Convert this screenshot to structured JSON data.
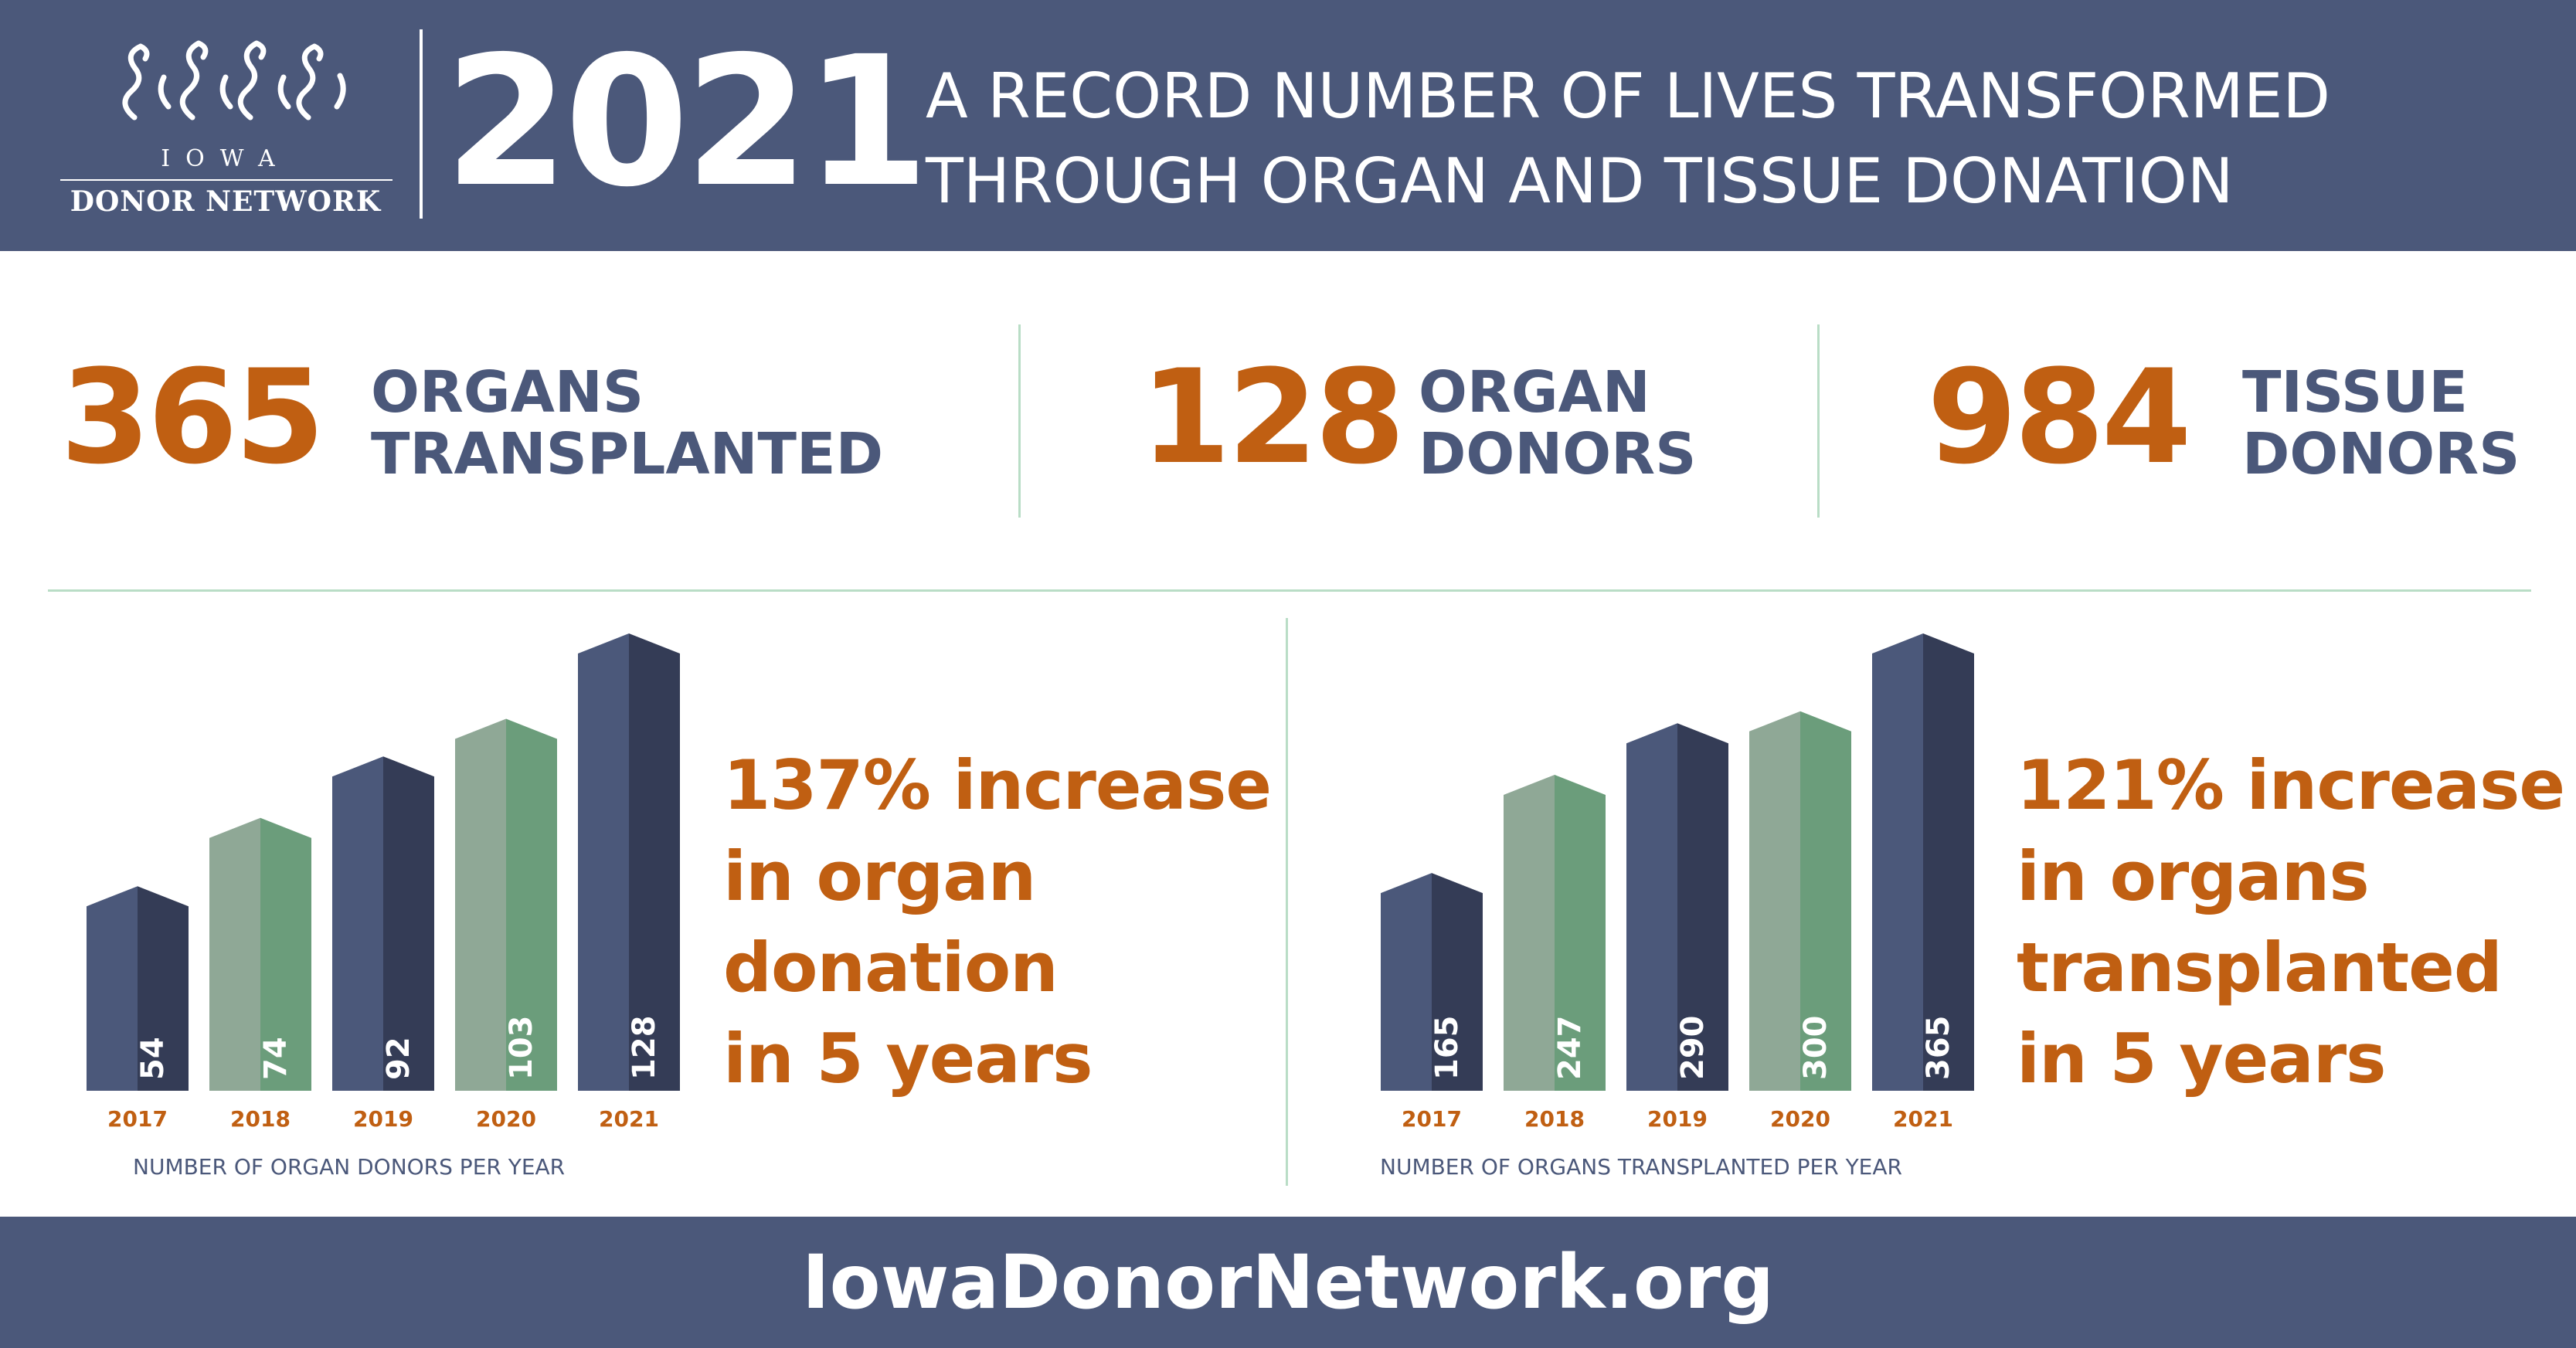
{
  "header": {
    "logo": {
      "mark": "iowa-donor-network-logo",
      "iowa": "IOWA",
      "name": "DONOR NETWORK"
    },
    "year": "2021",
    "headline_line1": "A RECORD NUMBER OF LIVES TRANSFORMED",
    "headline_line2": "THROUGH ORGAN AND TISSUE DONATION"
  },
  "stats": [
    {
      "value": "365",
      "label_line1": "ORGANS",
      "label_line2": "TRANSPLANTED"
    },
    {
      "value": "128",
      "label_line1": "ORGAN",
      "label_line2": "DONORS"
    },
    {
      "value": "984",
      "label_line1": "TISSUE",
      "label_line2": "DONORS"
    }
  ],
  "panels": [
    {
      "increase_lines": [
        "137% increase",
        "in organ",
        "donation",
        "in 5 years"
      ],
      "caption": "NUMBER OF ORGAN DONORS PER YEAR"
    },
    {
      "increase_lines": [
        "121% increase",
        "in organs",
        "transplanted",
        "in 5 years"
      ],
      "caption": "NUMBER OF ORGANS TRANSPLANTED PER YEAR"
    }
  ],
  "colors": {
    "navy": "#4b587a",
    "navy_dark": "#343c56",
    "green": "#8fa896",
    "green_dark": "#6b9d7b",
    "orange": "#c05f12",
    "divider": "#b9ddc6"
  },
  "chart_data": [
    {
      "type": "bar",
      "title": "",
      "xlabel": "NUMBER OF ORGAN DONORS PER YEAR",
      "ylabel": "",
      "categories": [
        "2017",
        "2018",
        "2019",
        "2020",
        "2021"
      ],
      "values": [
        54,
        74,
        92,
        103,
        128
      ],
      "bar_colors": [
        "navy",
        "green",
        "navy",
        "green",
        "navy"
      ],
      "grid": false
    },
    {
      "type": "bar",
      "title": "",
      "xlabel": "NUMBER OF ORGANS TRANSPLANTED PER YEAR",
      "ylabel": "",
      "categories": [
        "2017",
        "2018",
        "2019",
        "2020",
        "2021"
      ],
      "values": [
        165,
        247,
        290,
        300,
        365
      ],
      "bar_colors": [
        "navy",
        "green",
        "navy",
        "green",
        "navy"
      ],
      "grid": false
    }
  ],
  "footer": {
    "url": "IowaDonorNetwork.org"
  }
}
